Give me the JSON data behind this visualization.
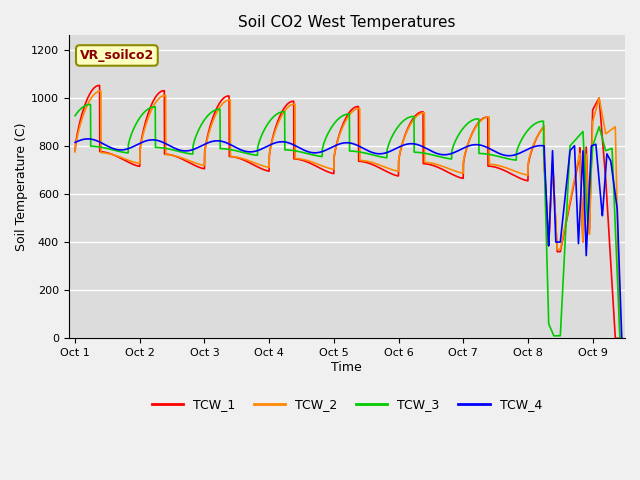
{
  "title": "Soil CO2 West Temperatures",
  "xlabel": "Time",
  "ylabel": "Soil Temperature (C)",
  "ylim": [
    0,
    1260
  ],
  "xlim": [
    -0.1,
    8.5
  ],
  "annotation_text": "VR_soilco2",
  "background_color": "#dcdcdc",
  "legend_labels": [
    "TCW_1",
    "TCW_2",
    "TCW_3",
    "TCW_4"
  ],
  "line_colors": [
    "#ff0000",
    "#ff8800",
    "#00cc00",
    "#0000ff"
  ],
  "xtick_positions": [
    0,
    1,
    2,
    3,
    4,
    5,
    6,
    7,
    8
  ],
  "xtick_labels": [
    "Oct 1",
    "Oct 2",
    "Oct 3",
    "Oct 4",
    "Oct 5",
    "Oct 6",
    "Oct 7",
    "Oct 8",
    "Oct 9"
  ]
}
